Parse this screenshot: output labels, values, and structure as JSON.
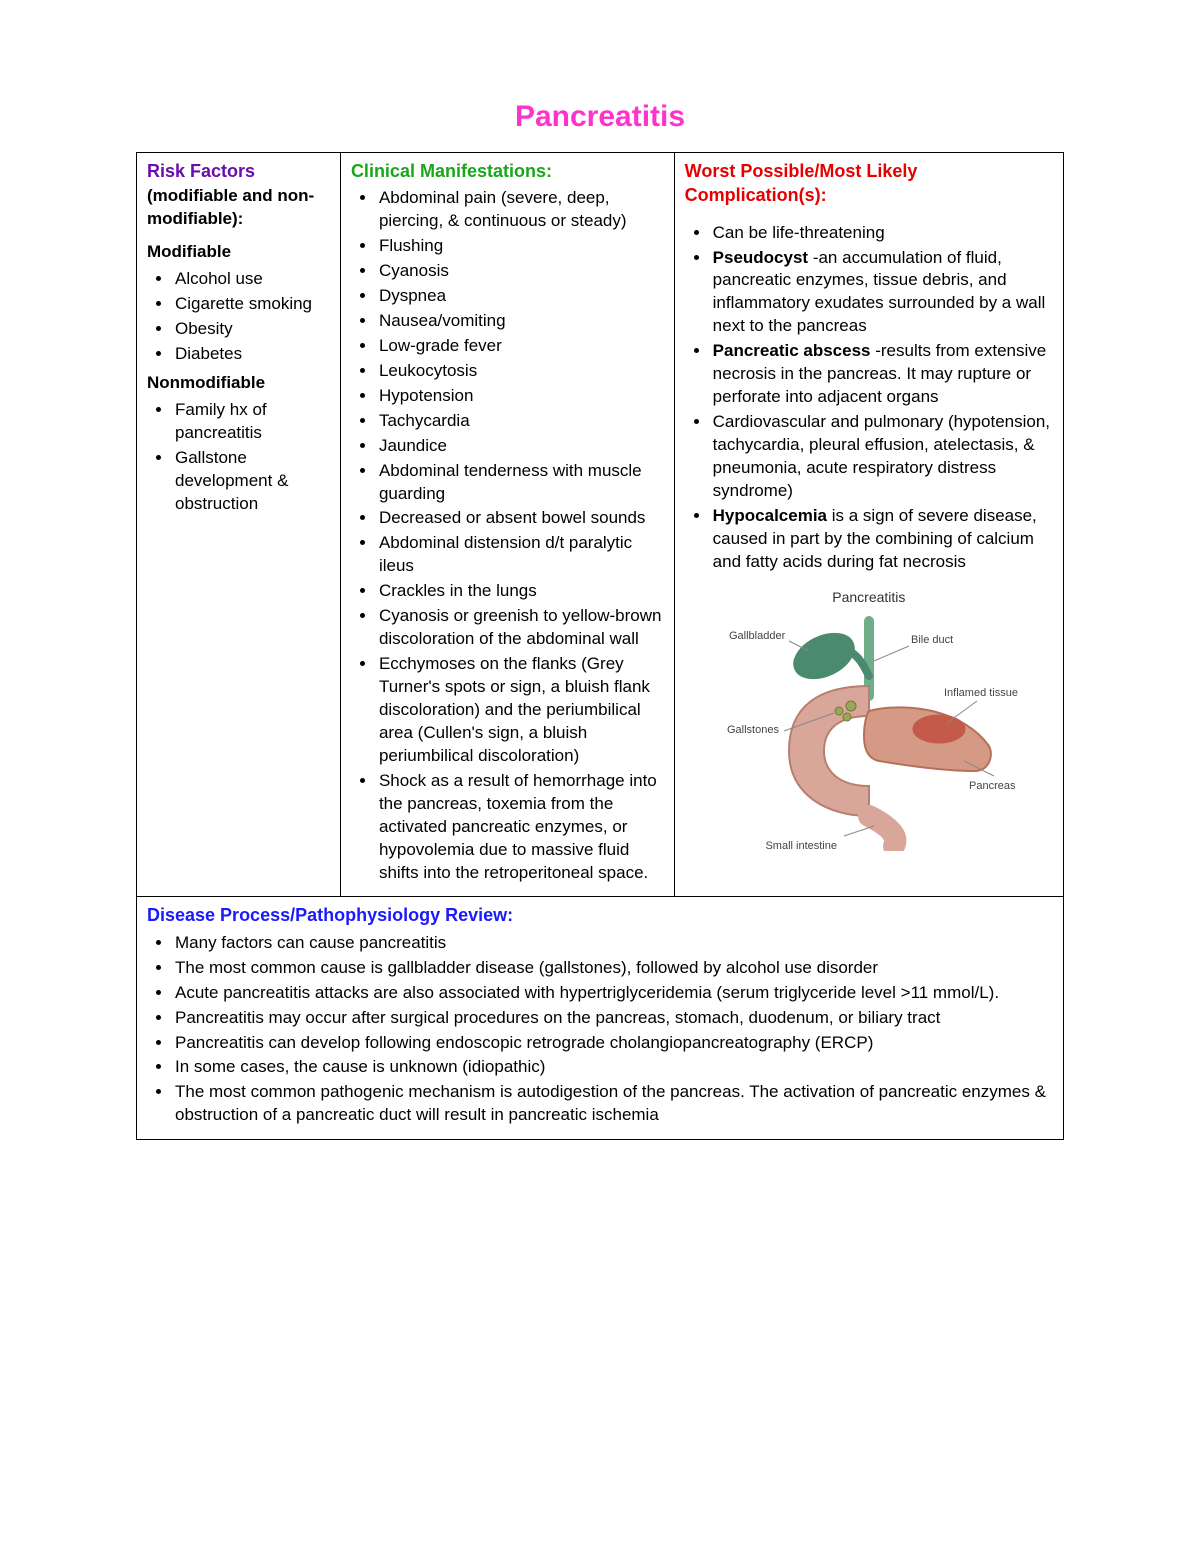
{
  "colors": {
    "title": "#ff33cc",
    "risk_heading": "#6a0dad",
    "clinical_heading": "#1aa61a",
    "complications_heading": "#e60000",
    "disease_heading": "#1a1aff",
    "text": "#000000",
    "border": "#000000",
    "background": "#ffffff"
  },
  "title": "Pancreatitis",
  "risk": {
    "heading": "Risk Factors",
    "sub": "(modifiable and non-modifiable):",
    "modifiable_label": "Modifiable",
    "modifiable": [
      "Alcohol use",
      "Cigarette smoking",
      "Obesity",
      "Diabetes"
    ],
    "nonmodifiable_label": "Nonmodifiable",
    "nonmodifiable": [
      "Family hx of pancreatitis",
      "Gallstone development & obstruction"
    ]
  },
  "clinical": {
    "heading": "Clinical Manifestations:",
    "items": [
      "Abdominal pain (severe, deep, piercing, & continuous or steady)",
      "Flushing",
      "Cyanosis",
      "Dyspnea",
      "Nausea/vomiting",
      "Low-grade fever",
      "Leukocytosis",
      "Hypotension",
      "Tachycardia",
      "Jaundice",
      "Abdominal tenderness with muscle guarding",
      "Decreased or absent bowel sounds",
      "Abdominal distension d/t paralytic ileus",
      "Crackles in the lungs",
      "Cyanosis or greenish to yellow-brown discoloration of the abdominal wall",
      "Ecchymoses on the flanks (Grey Turner's spots or sign, a bluish flank discoloration) and the periumbilical area (Cullen's sign, a bluish periumbilical discoloration)",
      "Shock as a result of hemorrhage into the pancreas, toxemia from the activated pancreatic enzymes, or hypovolemia due to massive fluid shifts into the retroperitoneal space."
    ]
  },
  "complications": {
    "heading": "Worst Possible/Most Likely Complication(s):",
    "items": [
      {
        "bold": "",
        "text": "Can be life-threatening"
      },
      {
        "bold": "Pseudocyst",
        "text": " -an accumulation of fluid, pancreatic enzymes, tissue debris, and inflammatory exudates surrounded by a wall next to the pancreas"
      },
      {
        "bold": "Pancreatic abscess",
        "text": " -results from extensive necrosis in the pancreas. It may rupture or perforate into adjacent organs"
      },
      {
        "bold": "",
        "text": "Cardiovascular and pulmonary (hypotension, tachycardia, pleural effusion, atelectasis, & pneumonia, acute respiratory distress syndrome)"
      },
      {
        "bold": "Hypocalcemia",
        "text": " is a sign of severe disease, caused in part by the combining of calcium and fatty acids during fat necrosis"
      }
    ]
  },
  "diagram": {
    "caption": "Pancreatitis",
    "labels": {
      "gallbladder": "Gallbladder",
      "bile_duct": "Bile duct",
      "gallstones": "Gallstones",
      "inflamed_tissue": "Inflamed tissue",
      "pancreas": "Pancreas",
      "small_intestine": "Small intestine"
    },
    "palette": {
      "gallbladder": "#4a8a6f",
      "bile_duct": "#6fae8a",
      "duodenum": "#d9a799",
      "duodenum_edge": "#b77f6f",
      "pancreas": "#d59a85",
      "pancreas_edge": "#b5705c",
      "inflamed": "#c45a4a",
      "gallstone": "#9aa65a"
    }
  },
  "disease": {
    "heading": "Disease Process/Pathophysiology Review:",
    "items": [
      "Many factors can cause pancreatitis",
      "The most common cause is gallbladder disease (gallstones), followed by alcohol use disorder",
      "Acute pancreatitis attacks are also associated with hypertriglyceridemia (serum triglyceride level >11 mmol/L).",
      "Pancreatitis may occur after surgical procedures on the pancreas, stomach, duodenum, or biliary tract",
      "Pancreatitis can develop following endoscopic retrograde cholangiopancreatography (ERCP)",
      "In some cases, the cause is unknown (idiopathic)",
      "The most common pathogenic mechanism is autodigestion of the pancreas. The activation of pancreatic enzymes & obstruction of a pancreatic duct will result in pancreatic ischemia"
    ]
  }
}
